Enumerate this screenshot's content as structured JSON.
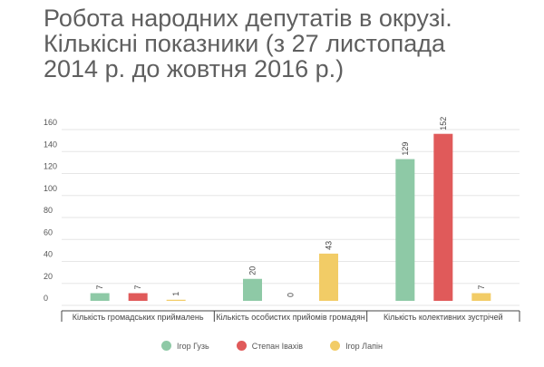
{
  "title_lines": [
    "Робота народних депутатів в окрузі.",
    "Кількісні показники (з 27 листопада",
    "2014 р. до жовтня 2016 р.)"
  ],
  "chart_data": {
    "type": "bar",
    "categories": [
      "Кількість громадських приймалень",
      "Кількість особистих прийомів громадян",
      "Кількість колективних зустрічей"
    ],
    "series": [
      {
        "name": "Ігор Гузь",
        "color": "#8ec9a6",
        "values": [
          7,
          20,
          129
        ]
      },
      {
        "name": "Степан Івахів",
        "color": "#e05a5a",
        "values": [
          7,
          0,
          152
        ]
      },
      {
        "name": "Ігор Лапін",
        "color": "#f2cc66",
        "values": [
          1,
          43,
          7
        ]
      }
    ],
    "y_ticks": [
      0,
      20,
      40,
      60,
      80,
      100,
      120,
      140,
      160
    ],
    "ylim": [
      0,
      160
    ],
    "grid": true,
    "legend_position": "bottom",
    "data_labels": true
  }
}
